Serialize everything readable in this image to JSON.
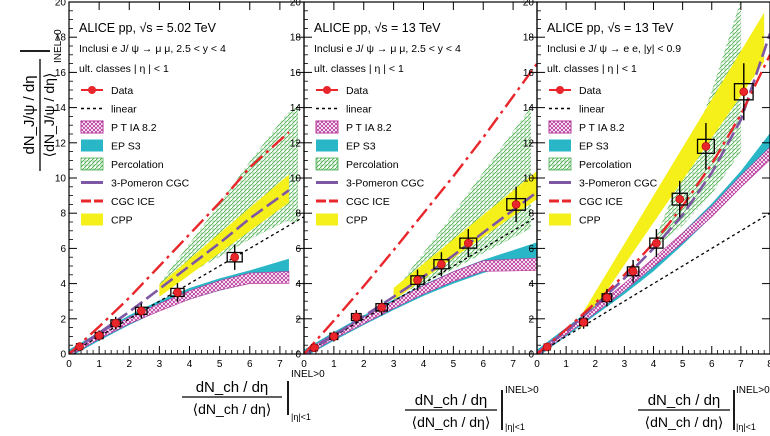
{
  "figure": {
    "ylabel": {
      "top": "dN_J/ψ / dη",
      "bottom": "⟨dN_J/ψ / dη⟩",
      "superscript": "INEL>0"
    },
    "xlabel": {
      "top": "dN_ch / dη",
      "bottom": "⟨dN_ch / dη⟩",
      "superscript": "INEL>0",
      "subscript": "|η|<1"
    }
  },
  "colors": {
    "data": "#e8262b",
    "linear": "#000000",
    "pythia": "#b7339a",
    "eps3": "#29b6c7",
    "percolation": "#4caf50",
    "cgc3pomeron": "#7e57a4",
    "cgcice": "#e8262b",
    "cpp": "#f5ef1a"
  },
  "legend": [
    {
      "key": "data",
      "label": "Data"
    },
    {
      "key": "linear",
      "label": "linear"
    },
    {
      "key": "pythia",
      "label": "P T IA 8.2"
    },
    {
      "key": "eps3",
      "label": "EP S3"
    },
    {
      "key": "percolation",
      "label": "Percolation"
    },
    {
      "key": "cgc3pomeron",
      "label": "3-Pomeron CGC"
    },
    {
      "key": "cgcice",
      "label": "CGC ICE"
    },
    {
      "key": "cpp",
      "label": "CPP"
    }
  ],
  "chart_data": [
    {
      "type": "scatter",
      "title": "ALICE pp, √s = 5.02 TeV",
      "subtitle": "Inclusi e J/ ψ → μ μ, 2.5 < y < 4",
      "classes": "ult. classes  | η | < 1",
      "xlim": [
        0,
        7.8
      ],
      "ylim": [
        0,
        20
      ],
      "xticks": [
        0,
        1,
        2,
        3,
        4,
        5,
        6,
        7
      ],
      "yticks": [
        0,
        2,
        4,
        6,
        8,
        10,
        12,
        14,
        16,
        18,
        20
      ],
      "data": {
        "x": [
          0.35,
          1.0,
          1.55,
          2.4,
          3.6,
          5.5
        ],
        "y": [
          0.42,
          1.05,
          1.75,
          2.45,
          3.5,
          5.5
        ]
      },
      "linear": {
        "x": [
          0,
          7.8
        ],
        "y": [
          0,
          7.8
        ]
      },
      "pythia": {
        "x": [
          0,
          1,
          2,
          3,
          4,
          5,
          6,
          7.3
        ],
        "y": [
          0,
          1.0,
          1.9,
          2.65,
          3.35,
          3.9,
          4.3,
          4.35
        ]
      },
      "eps3": {
        "x": [
          0,
          1,
          2,
          3,
          4,
          5,
          6,
          7.3
        ],
        "y": [
          0,
          0.95,
          1.85,
          2.65,
          3.3,
          3.8,
          4.2,
          4.8
        ]
      },
      "cgc3pomeron": {
        "x": [
          0,
          1,
          2,
          3,
          4,
          5,
          6,
          7.3
        ],
        "y": [
          0,
          1.2,
          2.4,
          3.7,
          5.0,
          6.3,
          7.7,
          9.3
        ]
      },
      "cgcice": {
        "x": [
          0,
          1,
          2,
          3,
          4,
          5,
          6,
          7.3
        ],
        "y": [
          0,
          1.55,
          3.2,
          5.0,
          6.8,
          8.6,
          10.6,
          12.6
        ]
      },
      "cpp": {
        "x": [
          3,
          7.3
        ],
        "y": [
          3.6,
          9.4
        ]
      }
    },
    {
      "type": "scatter",
      "title": "ALICE pp, √s = 13 TeV",
      "subtitle": "Inclusi e J/ ψ → μ μ, 2.5 < y < 4",
      "classes": "ult. classes  | η | < 1",
      "xlim": [
        0,
        7.8
      ],
      "ylim": [
        0,
        20
      ],
      "xticks": [
        0,
        1,
        2,
        3,
        4,
        5,
        6,
        7
      ],
      "yticks": [
        0,
        2,
        4,
        6,
        8,
        10,
        12,
        14,
        16,
        18,
        20
      ],
      "data": {
        "x": [
          0.35,
          1.0,
          1.75,
          2.6,
          3.8,
          4.6,
          5.5,
          7.1
        ],
        "y": [
          0.35,
          1.0,
          2.1,
          2.65,
          4.2,
          5.1,
          6.3,
          8.5
        ]
      },
      "linear": {
        "x": [
          0,
          7.8
        ],
        "y": [
          0,
          7.8
        ]
      },
      "pythia": {
        "x": [
          0,
          1,
          2,
          3,
          4,
          5,
          6,
          7.8
        ],
        "y": [
          0,
          1.0,
          1.9,
          2.8,
          3.65,
          4.4,
          5.0,
          5.1
        ]
      },
      "eps3": {
        "x": [
          0,
          1,
          2,
          3,
          4,
          5,
          6,
          7.8
        ],
        "y": [
          0,
          0.95,
          1.85,
          2.7,
          3.5,
          4.2,
          4.8,
          5.7
        ]
      },
      "cgc3pomeron": {
        "x": [
          0,
          1,
          2,
          3,
          4,
          5,
          6,
          7.8
        ],
        "y": [
          0,
          1.05,
          2.15,
          3.25,
          4.4,
          5.6,
          6.9,
          9.2
        ]
      },
      "cgcice": {
        "x": [
          0,
          1,
          2,
          3,
          4,
          5,
          6,
          7.8
        ],
        "y": [
          0,
          1.9,
          3.85,
          5.9,
          8.0,
          10.1,
          12.3,
          16.5
        ]
      },
      "cpp": {
        "x": [
          3,
          7.8
        ],
        "y": [
          3.4,
          9.6
        ]
      }
    },
    {
      "type": "scatter",
      "title": "ALICE pp, √s = 13 TeV",
      "subtitle": "Inclusi e J/ ψ → e e, |y| < 0.9",
      "classes": "ult. classes  | η | < 1",
      "xlim": [
        0,
        8
      ],
      "ylim": [
        0,
        20
      ],
      "xticks": [
        0,
        1,
        2,
        3,
        4,
        5,
        6,
        7,
        8
      ],
      "yticks": [
        0,
        2,
        4,
        6,
        8,
        10,
        12,
        14,
        16,
        18,
        20
      ],
      "data": {
        "x": [
          0.35,
          1.6,
          2.4,
          3.3,
          4.1,
          4.9,
          5.8,
          7.1
        ],
        "y": [
          0.4,
          1.8,
          3.2,
          4.7,
          6.3,
          8.8,
          11.8,
          14.9
        ]
      },
      "linear": {
        "x": [
          0,
          8
        ],
        "y": [
          0,
          8
        ]
      },
      "pythia": {
        "x": [
          0,
          1,
          2,
          3,
          4,
          5,
          6,
          7,
          8
        ],
        "y": [
          0,
          1.25,
          2.5,
          3.8,
          5.2,
          6.6,
          8.1,
          9.8,
          11.4
        ]
      },
      "eps3": {
        "x": [
          0,
          1,
          2,
          3,
          4,
          5,
          6,
          7,
          8
        ],
        "y": [
          0,
          1.2,
          2.4,
          3.6,
          4.9,
          6.4,
          8.0,
          9.8,
          11.9
        ]
      },
      "cgc3pomeron": {
        "x": [
          0,
          1,
          2,
          3,
          4,
          5,
          6,
          7,
          8
        ],
        "y": [
          0,
          1.3,
          2.75,
          4.3,
          6.0,
          7.9,
          10.3,
          13.3,
          18.2
        ]
      },
      "cgcice": {
        "x": [
          0,
          1,
          2,
          3,
          4,
          5,
          6,
          7,
          8
        ],
        "y": [
          0,
          1.4,
          2.9,
          4.5,
          6.3,
          8.4,
          10.8,
          13.6,
          17.0
        ]
      },
      "cpp": {
        "x": [
          1.5,
          7.8
        ],
        "y": [
          1.8,
          18.0
        ]
      }
    }
  ]
}
